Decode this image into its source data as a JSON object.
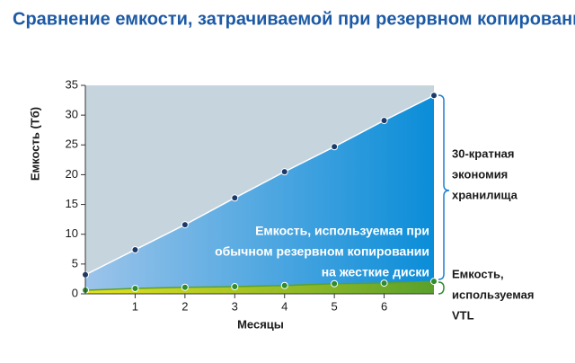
{
  "chart_data": {
    "type": "area",
    "title": "Сравнение емкости, затрачиваемой при резервном копировании",
    "y_label": "Емкость (Тб)",
    "x_label": "Месяцы",
    "x": [
      0,
      1,
      2,
      3,
      4,
      5,
      6,
      7
    ],
    "series": [
      {
        "color": "#1b3a6b",
        "values": [
          3.2,
          7.4,
          11.6,
          16.1,
          20.5,
          24.7,
          29.1,
          33.3
        ]
      },
      {
        "color": "#2e8b2e",
        "values": [
          0.6,
          0.9,
          1.1,
          1.2,
          1.4,
          1.7,
          1.8,
          2.1
        ]
      }
    ],
    "xlim": [
      0,
      7
    ],
    "xticks": [
      1,
      2,
      3,
      4,
      5,
      6
    ],
    "ylim": [
      0,
      35
    ],
    "yticks": [
      0,
      5,
      10,
      15,
      20,
      25,
      30,
      35
    ],
    "area_label": [
      "Емкость, используемая при",
      "обычном резервном копировании",
      "на жесткие диски"
    ],
    "savings_label": [
      "30-кратная",
      "экономия",
      "хранилища"
    ],
    "vtl_label": [
      "Емкость,",
      "используемая",
      "VTL"
    ]
  }
}
